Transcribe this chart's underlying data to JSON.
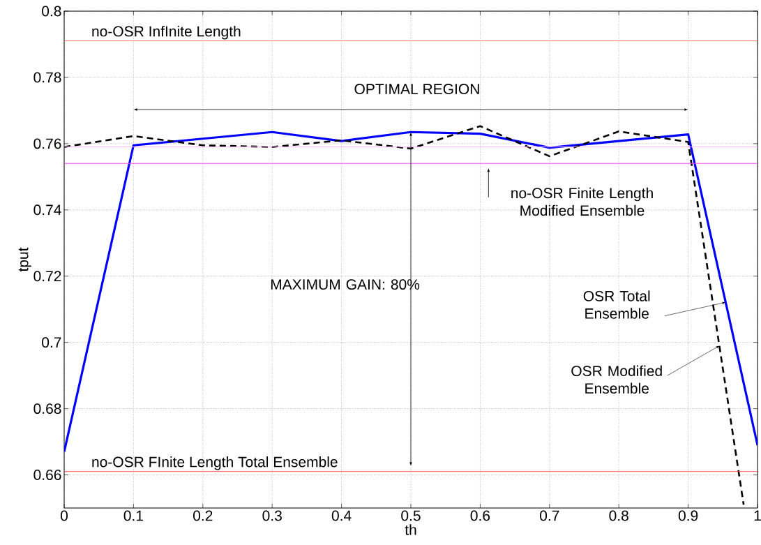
{
  "chart_data": {
    "type": "line",
    "xlabel": "th",
    "ylabel": "tput",
    "x": [
      0,
      0.1,
      0.2,
      0.3,
      0.4,
      0.5,
      0.6,
      0.7,
      0.8,
      0.9,
      1
    ],
    "series": [
      {
        "color": "#0000ff",
        "line_style": "solid",
        "values": [
          0.667,
          0.7595,
          0.7615,
          0.7635,
          0.7608,
          0.7635,
          0.763,
          0.7588,
          0.7608,
          0.7628,
          0.669
        ]
      },
      {
        "color": "#000000",
        "line_style": "dashed",
        "x": [
          0,
          0.1,
          0.2,
          0.3,
          0.4,
          0.5,
          0.6,
          0.7,
          0.8,
          0.9,
          0.98
        ],
        "values": [
          0.759,
          0.7623,
          0.7595,
          0.759,
          0.761,
          0.7585,
          0.7653,
          0.7562,
          0.7637,
          0.7605,
          0.651
        ]
      }
    ],
    "xlim": [
      0,
      1
    ],
    "ylim": [
      0.65,
      0.8
    ],
    "xticks": [
      0,
      0.1,
      0.2,
      0.3,
      0.4,
      0.5,
      0.6,
      0.7,
      0.8,
      0.9,
      1
    ],
    "yticks": [
      0.66,
      0.68,
      0.7,
      0.72,
      0.74,
      0.76,
      0.78,
      0.8
    ],
    "grid": true,
    "ref_lines": [
      {
        "axis": "y",
        "value": 0.791,
        "label": "no-OSR InfInite Length",
        "color": "#ff4444"
      },
      {
        "axis": "y",
        "value": 0.661,
        "label": "no-OSR FInite Length Total Ensemble",
        "color": "#ff4444"
      },
      {
        "axis": "y",
        "value": 0.754,
        "color": "#ff44ff"
      },
      {
        "axis": "y",
        "value": 0.759,
        "color": "#ffb8ff"
      }
    ],
    "annotations": [
      "OPTIMAL REGION",
      "MAXIMUM GAIN: 80%",
      "no-OSR Finite Length Modified Ensemble",
      {
        "text": "OSR Total Ensemble",
        "x": 0.954,
        "y": 0.7121
      },
      {
        "text": "OSR Modified Ensemble",
        "x": 0.945,
        "y": 0.699
      }
    ]
  }
}
